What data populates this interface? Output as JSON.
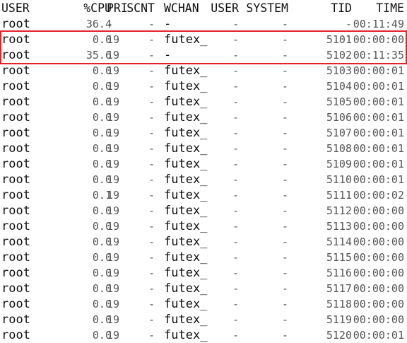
{
  "headers": {
    "user": "USER",
    "cpu": "%CPU",
    "pri": "PRI",
    "scnt": "SCNT",
    "wchan": "WCHAN",
    "usr": "USER",
    "sys": "SYSTEM",
    "tid": "TID",
    "time": "TIME"
  },
  "highlight_color": "#e0242b",
  "rows": [
    {
      "user": "root",
      "cpu": "36.4",
      "pri": "-",
      "scnt": "-",
      "wchan": "-",
      "usr": "-",
      "sys": "-",
      "tid": "-",
      "time": "00:11:49"
    },
    {
      "user": "root",
      "cpu": "0.0",
      "pri": "19",
      "scnt": "-",
      "wchan": "futex_",
      "usr": "-",
      "sys": "-",
      "tid": "5101",
      "time": "00:00:00"
    },
    {
      "user": "root",
      "cpu": "35.6",
      "pri": "19",
      "scnt": "-",
      "wchan": "-",
      "usr": "-",
      "sys": "-",
      "tid": "5102",
      "time": "00:11:35"
    },
    {
      "user": "root",
      "cpu": "0.0",
      "pri": "19",
      "scnt": "-",
      "wchan": "futex_",
      "usr": "-",
      "sys": "-",
      "tid": "5103",
      "time": "00:00:01"
    },
    {
      "user": "root",
      "cpu": "0.0",
      "pri": "19",
      "scnt": "-",
      "wchan": "futex_",
      "usr": "-",
      "sys": "-",
      "tid": "5104",
      "time": "00:00:01"
    },
    {
      "user": "root",
      "cpu": "0.0",
      "pri": "19",
      "scnt": "-",
      "wchan": "futex_",
      "usr": "-",
      "sys": "-",
      "tid": "5105",
      "time": "00:00:01"
    },
    {
      "user": "root",
      "cpu": "0.0",
      "pri": "19",
      "scnt": "-",
      "wchan": "futex_",
      "usr": "-",
      "sys": "-",
      "tid": "5106",
      "time": "00:00:01"
    },
    {
      "user": "root",
      "cpu": "0.0",
      "pri": "19",
      "scnt": "-",
      "wchan": "futex_",
      "usr": "-",
      "sys": "-",
      "tid": "5107",
      "time": "00:00:01"
    },
    {
      "user": "root",
      "cpu": "0.0",
      "pri": "19",
      "scnt": "-",
      "wchan": "futex_",
      "usr": "-",
      "sys": "-",
      "tid": "5108",
      "time": "00:00:01"
    },
    {
      "user": "root",
      "cpu": "0.0",
      "pri": "19",
      "scnt": "-",
      "wchan": "futex_",
      "usr": "-",
      "sys": "-",
      "tid": "5109",
      "time": "00:00:01"
    },
    {
      "user": "root",
      "cpu": "0.0",
      "pri": "19",
      "scnt": "-",
      "wchan": "futex_",
      "usr": "-",
      "sys": "-",
      "tid": "5110",
      "time": "00:00:01"
    },
    {
      "user": "root",
      "cpu": "0.1",
      "pri": "19",
      "scnt": "-",
      "wchan": "futex_",
      "usr": "-",
      "sys": "-",
      "tid": "5111",
      "time": "00:00:02"
    },
    {
      "user": "root",
      "cpu": "0.0",
      "pri": "19",
      "scnt": "-",
      "wchan": "futex_",
      "usr": "-",
      "sys": "-",
      "tid": "5112",
      "time": "00:00:00"
    },
    {
      "user": "root",
      "cpu": "0.0",
      "pri": "19",
      "scnt": "-",
      "wchan": "futex_",
      "usr": "-",
      "sys": "-",
      "tid": "5113",
      "time": "00:00:00"
    },
    {
      "user": "root",
      "cpu": "0.0",
      "pri": "19",
      "scnt": "-",
      "wchan": "futex_",
      "usr": "-",
      "sys": "-",
      "tid": "5114",
      "time": "00:00:00"
    },
    {
      "user": "root",
      "cpu": "0.0",
      "pri": "19",
      "scnt": "-",
      "wchan": "futex_",
      "usr": "-",
      "sys": "-",
      "tid": "5115",
      "time": "00:00:00"
    },
    {
      "user": "root",
      "cpu": "0.0",
      "pri": "19",
      "scnt": "-",
      "wchan": "futex_",
      "usr": "-",
      "sys": "-",
      "tid": "5116",
      "time": "00:00:00"
    },
    {
      "user": "root",
      "cpu": "0.0",
      "pri": "19",
      "scnt": "-",
      "wchan": "futex_",
      "usr": "-",
      "sys": "-",
      "tid": "5117",
      "time": "00:00:00"
    },
    {
      "user": "root",
      "cpu": "0.0",
      "pri": "19",
      "scnt": "-",
      "wchan": "futex_",
      "usr": "-",
      "sys": "-",
      "tid": "5118",
      "time": "00:00:00"
    },
    {
      "user": "root",
      "cpu": "0.0",
      "pri": "19",
      "scnt": "-",
      "wchan": "futex_",
      "usr": "-",
      "sys": "-",
      "tid": "5119",
      "time": "00:00:00"
    },
    {
      "user": "root",
      "cpu": "0.0",
      "pri": "19",
      "scnt": "-",
      "wchan": "futex_",
      "usr": "-",
      "sys": "-",
      "tid": "5120",
      "time": "00:00:01"
    }
  ]
}
